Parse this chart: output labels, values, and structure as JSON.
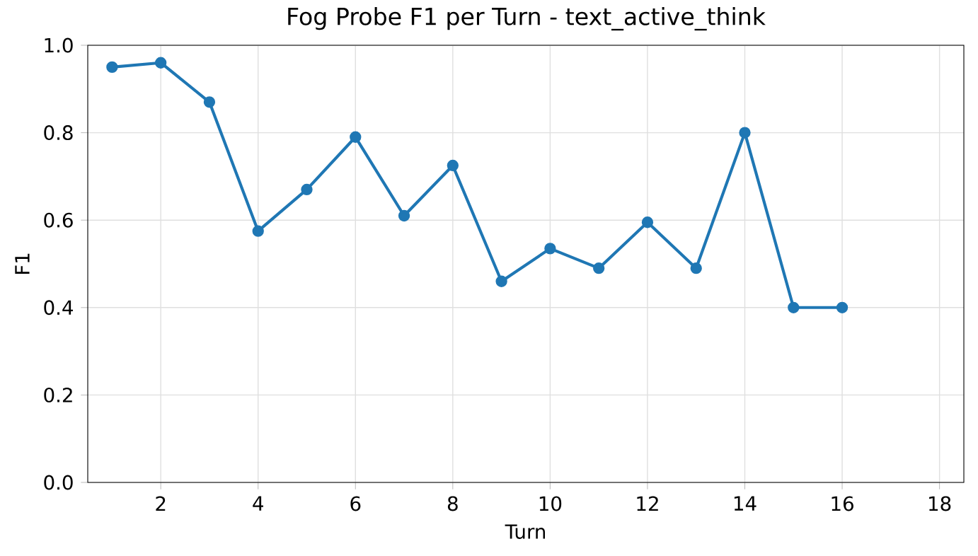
{
  "chart_data": {
    "type": "line",
    "title": "Fog Probe F1 per Turn - text_active_think",
    "xlabel": "Turn",
    "ylabel": "F1",
    "x": [
      1,
      2,
      3,
      4,
      5,
      6,
      7,
      8,
      9,
      10,
      11,
      12,
      13,
      14,
      15,
      16
    ],
    "series": [
      {
        "color": "#1f77b4",
        "values": [
          0.95,
          0.96,
          0.87,
          0.575,
          0.67,
          0.79,
          0.61,
          0.725,
          0.46,
          0.535,
          0.49,
          0.595,
          0.49,
          0.8,
          0.4,
          0.4
        ]
      }
    ],
    "xlim": [
      0.5,
      18.5
    ],
    "ylim": [
      0,
      1
    ],
    "xticks": [
      2,
      4,
      6,
      8,
      10,
      12,
      14,
      16,
      18
    ],
    "yticks": [
      {
        "value": 0,
        "label": "0.0"
      },
      {
        "value": 0.2,
        "label": "0.2"
      },
      {
        "value": 0.4,
        "label": "0.4"
      },
      {
        "value": 0.6,
        "label": "0.6"
      },
      {
        "value": 0.8,
        "label": "0.8"
      },
      {
        "value": 1,
        "label": "1.0"
      }
    ],
    "grid": true,
    "marker": "circle",
    "line_style": "solid"
  }
}
